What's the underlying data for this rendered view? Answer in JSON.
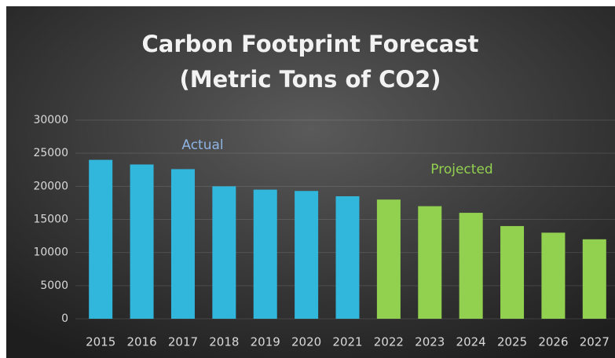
{
  "chart_data": {
    "type": "bar",
    "title": "Carbon Footprint Forecast",
    "subtitle": "(Metric Tons of CO2)",
    "categories": [
      "2015",
      "2016",
      "2017",
      "2018",
      "2019",
      "2020",
      "2021",
      "2022",
      "2023",
      "2024",
      "2025",
      "2026",
      "2027"
    ],
    "series": [
      {
        "name": "Actual",
        "color": "#31b6dc",
        "label_color": "#8fb4e3",
        "values": [
          24000,
          23300,
          22600,
          20000,
          19500,
          19300,
          18500,
          null,
          null,
          null,
          null,
          null,
          null
        ]
      },
      {
        "name": "Projected",
        "color": "#92d050",
        "label_color": "#92d050",
        "values": [
          null,
          null,
          null,
          null,
          null,
          null,
          null,
          18000,
          17000,
          16000,
          14000,
          13000,
          12000
        ]
      }
    ],
    "ylim": [
      0,
      30000
    ],
    "yticks": [
      0,
      5000,
      10000,
      15000,
      20000,
      25000,
      30000
    ],
    "grid": true
  }
}
